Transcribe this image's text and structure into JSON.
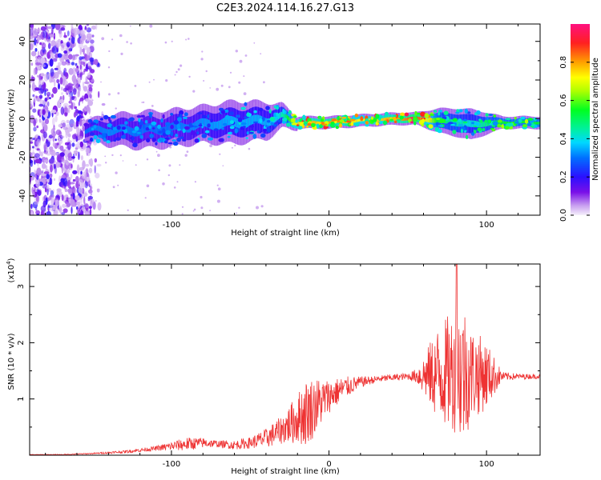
{
  "title": "C2E3.2024.114.16.27.G13",
  "chart_data": [
    {
      "type": "heatmap",
      "title": "C2E3.2024.114.16.27.G13",
      "xlabel": "Height of straight line (km)",
      "ylabel": "Frequency (Hz)",
      "xlim": [
        -190,
        134
      ],
      "ylim": [
        -50,
        49
      ],
      "xticks": [
        -100,
        0,
        100
      ],
      "yticks": [
        -40,
        -20,
        0,
        20,
        40
      ],
      "colorbar": {
        "label": "Normalized spectral amplitude",
        "range": [
          0,
          1
        ],
        "ticks": [
          0.0,
          0.2,
          0.4,
          0.6,
          0.8
        ],
        "colormap": "purple-blue-cyan-green-yellow-red-pink"
      },
      "noise_region_x": [
        -190,
        -150
      ],
      "signal_band": [
        {
          "x": -155,
          "center_hz": -6,
          "half_width_hz": 3,
          "level": 0.3
        },
        {
          "x": -140,
          "center_hz": -6,
          "half_width_hz": 5,
          "level": 0.32
        },
        {
          "x": -120,
          "center_hz": -6,
          "half_width_hz": 6,
          "level": 0.3
        },
        {
          "x": -100,
          "center_hz": -5,
          "half_width_hz": 6,
          "level": 0.3
        },
        {
          "x": -80,
          "center_hz": -3,
          "half_width_hz": 6,
          "level": 0.33
        },
        {
          "x": -60,
          "center_hz": -2,
          "half_width_hz": 7,
          "level": 0.35
        },
        {
          "x": -40,
          "center_hz": -1,
          "half_width_hz": 6,
          "level": 0.35
        },
        {
          "x": -30,
          "center_hz": 1,
          "half_width_hz": 4,
          "level": 0.42
        },
        {
          "x": -20,
          "center_hz": -2,
          "half_width_hz": 2,
          "level": 0.75
        },
        {
          "x": 0,
          "center_hz": -2,
          "half_width_hz": 2,
          "level": 0.8
        },
        {
          "x": 20,
          "center_hz": -1,
          "half_width_hz": 2,
          "level": 0.72
        },
        {
          "x": 45,
          "center_hz": 0,
          "half_width_hz": 2,
          "level": 0.8
        },
        {
          "x": 55,
          "center_hz": 0,
          "half_width_hz": 2,
          "level": 0.9
        },
        {
          "x": 70,
          "center_hz": -1,
          "half_width_hz": 4,
          "level": 0.5
        },
        {
          "x": 90,
          "center_hz": -3,
          "half_width_hz": 5,
          "level": 0.4
        },
        {
          "x": 110,
          "center_hz": -2,
          "half_width_hz": 2,
          "level": 0.55
        },
        {
          "x": 134,
          "center_hz": -2,
          "half_width_hz": 2,
          "level": 0.55
        }
      ]
    },
    {
      "type": "line",
      "xlabel": "Height of straight line (km)",
      "ylabel": "SNR (10 * v/v)",
      "y_multiplier": "(x10",
      "y_multiplier_exp": "4",
      "y_multiplier_close": ")",
      "xlim": [
        -190,
        134
      ],
      "ylim": [
        0,
        3.4
      ],
      "xticks": [
        -100,
        0,
        100
      ],
      "yticks": [
        1,
        2,
        3
      ],
      "color": "#ee3333",
      "series": [
        {
          "x": [
            -190,
            -170,
            -150,
            -130,
            -110,
            -90,
            -80,
            -70,
            -60,
            -50,
            -40,
            -30,
            -20,
            -10,
            0,
            10,
            20,
            30,
            40,
            50,
            60,
            70,
            80,
            90,
            100,
            110,
            120,
            134
          ],
          "y": [
            0.01,
            0.01,
            0.03,
            0.06,
            0.12,
            0.2,
            0.22,
            0.2,
            0.18,
            0.22,
            0.3,
            0.45,
            0.65,
            0.85,
            1.05,
            1.2,
            1.3,
            1.35,
            1.38,
            1.4,
            1.42,
            1.45,
            1.5,
            1.45,
            1.42,
            1.4,
            1.4,
            1.4
          ]
        }
      ],
      "envelope": {
        "x": [
          -190,
          -150,
          -110,
          -90,
          -70,
          -50,
          -30,
          -20,
          -15,
          -10,
          0,
          10,
          20,
          30,
          40,
          50,
          55,
          60,
          70,
          80,
          85,
          90,
          100,
          110,
          120,
          134
        ],
        "amp": [
          0.005,
          0.01,
          0.04,
          0.12,
          0.06,
          0.1,
          0.25,
          0.45,
          0.6,
          0.55,
          0.3,
          0.2,
          0.1,
          0.06,
          0.06,
          0.06,
          0.12,
          0.35,
          0.9,
          1.1,
          1.35,
          0.85,
          0.6,
          0.08,
          0.05,
          0.04
        ]
      },
      "peak": {
        "x": 81,
        "y": 3.4
      }
    }
  ]
}
